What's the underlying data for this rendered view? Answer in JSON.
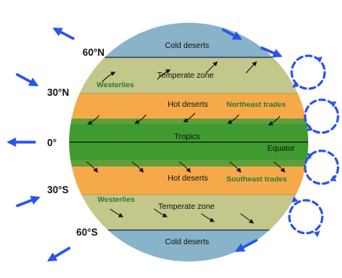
{
  "latitudes": {
    "north60": "60°N",
    "north30": "30°N",
    "equator": "0°",
    "south30": "30°S",
    "south60": "60°S"
  },
  "bands": {
    "north_cold": "Cold deserts",
    "north_temperate": "Temperate zone",
    "north_hot": "Hot deserts",
    "tropics": "Tropics",
    "south_hot": "Hot deserts",
    "south_temperate": "Temperate zone",
    "south_cold": "Cold deserts"
  },
  "winds": {
    "westerlies_north": "Westerlies",
    "northeast_trades": "Northeast trades",
    "southeast_trades": "Southeast trades",
    "westerlies_south": "Westerlies"
  },
  "equator_label": "Equator",
  "colors": {
    "cold": "#88b3c9",
    "temperate": "#c3c78a",
    "hot": "#f5a94b",
    "tropics_outer": "#5f9e3a",
    "tropics_inner": "#3f9a2f",
    "wind_text": "#2c7a33",
    "arrow_blue": "#2a54e8"
  }
}
